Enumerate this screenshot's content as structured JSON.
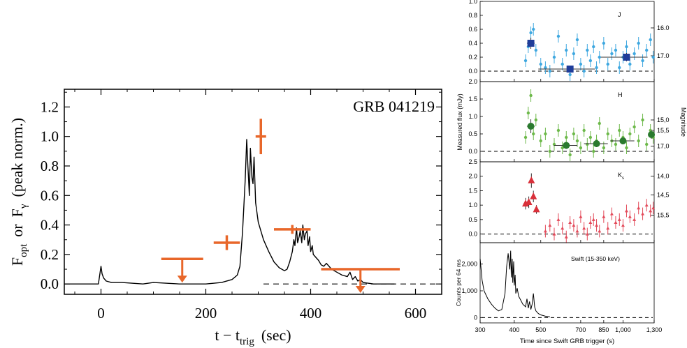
{
  "chart_data": [
    {
      "type": "line",
      "annotation": "GRB 041219",
      "xlabel": {
        "main": "t − t",
        "sub": "trig",
        "unit": "(sec)"
      },
      "ylabel": {
        "f1": "F",
        "s1": "opt",
        "or": "or",
        "f2": "F",
        "s2": "γ",
        "unit": "(peak norm.)"
      },
      "xlim": [
        -70,
        650
      ],
      "ylim": [
        -0.07,
        1.32
      ],
      "xticks": [
        0,
        200,
        400,
        600
      ],
      "yticks": [
        0.0,
        0.2,
        0.4,
        0.6,
        0.8,
        1.0,
        1.2
      ],
      "xtick_labels": [
        "0",
        "200",
        "400",
        "600"
      ],
      "ytick_labels": [
        "0.0",
        "0.2",
        "0.4",
        "0.6",
        "0.8",
        "1.0",
        "1.2"
      ],
      "colors": {
        "gamma": "#000000",
        "optical": "#e8672a"
      },
      "series": [
        {
          "x": [
            -70,
            -5,
            0,
            2,
            5,
            10,
            20,
            40,
            80,
            100,
            150,
            200,
            230,
            250,
            260,
            265,
            270,
            275,
            278,
            280,
            283,
            285,
            288,
            290,
            292,
            295,
            300,
            310,
            320,
            330,
            340,
            350,
            355,
            360,
            365,
            368,
            370,
            373,
            375,
            378,
            380,
            383,
            385,
            388,
            390,
            393,
            395,
            398,
            400,
            403,
            405,
            410,
            415,
            420,
            425,
            430,
            440,
            450,
            460,
            470,
            475,
            480,
            485,
            490,
            495,
            500,
            520,
            540,
            560
          ],
          "y": [
            0.0,
            0.0,
            0.12,
            0.07,
            0.04,
            0.02,
            0.01,
            0.01,
            0.0,
            0.01,
            0.0,
            0.0,
            0.01,
            0.03,
            0.06,
            0.12,
            0.35,
            0.7,
            0.98,
            0.82,
            0.6,
            0.92,
            0.72,
            0.68,
            0.86,
            0.55,
            0.42,
            0.3,
            0.22,
            0.15,
            0.11,
            0.09,
            0.1,
            0.15,
            0.22,
            0.3,
            0.26,
            0.38,
            0.28,
            0.32,
            0.36,
            0.28,
            0.4,
            0.3,
            0.34,
            0.36,
            0.26,
            0.32,
            0.22,
            0.26,
            0.2,
            0.18,
            0.16,
            0.13,
            0.12,
            0.14,
            0.1,
            0.08,
            0.06,
            0.05,
            0.08,
            0.03,
            0.05,
            0.02,
            0.03,
            0.01,
            0.0,
            0.0,
            0.0
          ]
        },
        {
          "x": [
            365,
            240,
            305
          ],
          "y": [
            0.37,
            0.28,
            1.0
          ],
          "xerr": [
            35,
            25,
            10
          ],
          "yerr": [
            0.03,
            0.05,
            0.12
          ]
        },
        {
          "x": [
            155,
            495
          ],
          "y": [
            0.17,
            0.1
          ],
          "xerr": [
            40,
            75
          ],
          "upper_limit": true
        }
      ]
    },
    {
      "type": "scatter",
      "xlabel": "Time since Swift GRB trigger (s)",
      "ylabel_left": "Measured flux (mJy)",
      "ylabel_right": "Magnitude",
      "xscale": "log",
      "xlim": [
        300,
        1300
      ],
      "xticks": [
        300,
        400,
        500,
        700,
        850,
        1000,
        1300
      ],
      "xtick_labels": [
        "300",
        "400",
        "500",
        "700",
        "850",
        "1,000",
        "1,300"
      ],
      "panels": [
        {
          "band": "J",
          "color": "#3fa8e0",
          "mean_color": "#1f3d9a",
          "ylim": [
            -0.15,
            1.0
          ],
          "yticks": [
            0.0,
            0.2,
            0.4,
            0.6,
            0.8,
            1.0
          ],
          "ytick_labels": [
            "0.0",
            "0.2",
            "0.4",
            "0.6",
            "0.8",
            "1.0"
          ],
          "mag_ticks": [
            16.0,
            17.0
          ],
          "mag_labels": [
            "16.0",
            "17.0"
          ],
          "mag_flux": [
            0.62,
            0.22
          ],
          "points_x": [
            440,
            450,
            460,
            470,
            480,
            500,
            520,
            540,
            560,
            580,
            600,
            620,
            640,
            660,
            680,
            700,
            720,
            740,
            760,
            780,
            800,
            820,
            850,
            880,
            910,
            940,
            970,
            1000,
            1030,
            1060,
            1100,
            1140,
            1180,
            1220,
            1260,
            1290
          ],
          "points_y": [
            0.15,
            0.35,
            0.55,
            0.6,
            0.3,
            0.1,
            0.05,
            0.0,
            0.2,
            0.5,
            0.1,
            0.3,
            -0.05,
            0.25,
            0.45,
            0.1,
            0.0,
            0.3,
            0.15,
            0.35,
            0.05,
            0.2,
            0.4,
            0.1,
            0.25,
            0.3,
            0.05,
            0.2,
            0.35,
            0.1,
            0.25,
            0.4,
            0.15,
            0.3,
            0.45,
            0.2
          ],
          "means": [
            {
              "x": 460,
              "y": 0.4,
              "xerr": 15,
              "yerr": 0.08
            },
            {
              "x": 640,
              "y": 0.03,
              "xerr": 150,
              "yerr": 0.05
            },
            {
              "x": 1030,
              "y": 0.2,
              "xerr": 200,
              "yerr": 0.06
            }
          ],
          "marker": "square"
        },
        {
          "band": "H",
          "color": "#6db94a",
          "mean_color": "#2a7a2e",
          "ylim": [
            -0.3,
            2.0
          ],
          "yticks": [
            0.0,
            0.5,
            1.0,
            1.5,
            2.0
          ],
          "ytick_labels": [
            "0.0",
            "0.5",
            "1.0",
            "1.5",
            "2.0"
          ],
          "mag_ticks": [
            15.0,
            15.5,
            17.0
          ],
          "mag_labels": [
            "15,0",
            "15,5",
            "17,0"
          ],
          "mag_flux": [
            0.9,
            0.6,
            0.15
          ],
          "points_x": [
            440,
            450,
            460,
            470,
            480,
            500,
            520,
            540,
            560,
            580,
            600,
            620,
            640,
            660,
            680,
            700,
            720,
            740,
            760,
            780,
            800,
            820,
            850,
            880,
            910,
            940,
            970,
            1000,
            1030,
            1060,
            1100,
            1140,
            1180,
            1220,
            1260,
            1290
          ],
          "points_y": [
            0.4,
            1.1,
            1.6,
            0.5,
            0.9,
            0.3,
            0.5,
            0.0,
            0.2,
            0.6,
            0.1,
            0.4,
            -0.1,
            0.5,
            0.3,
            0.1,
            0.6,
            0.2,
            0.4,
            0.0,
            0.3,
            0.8,
            0.1,
            0.5,
            0.3,
            0.2,
            0.6,
            0.4,
            0.1,
            0.5,
            0.7,
            0.3,
            0.9,
            0.2,
            0.6,
            0.4
          ],
          "means": [
            {
              "x": 460,
              "y": 0.72,
              "xerr": 15,
              "yerr": 0.2
            },
            {
              "x": 620,
              "y": 0.17,
              "xerr": 60,
              "yerr": 0.1
            },
            {
              "x": 800,
              "y": 0.22,
              "xerr": 80,
              "yerr": 0.1
            },
            {
              "x": 1000,
              "y": 0.3,
              "xerr": 100,
              "yerr": 0.1
            },
            {
              "x": 1270,
              "y": 0.48,
              "xerr": 30,
              "yerr": 0.12
            }
          ],
          "marker": "circle"
        },
        {
          "band": "Ks",
          "color": "#e34a5a",
          "mean_color": "#d9303a",
          "ylim": [
            -0.3,
            2.5
          ],
          "yticks": [
            0.0,
            0.5,
            1.0,
            1.5,
            2.0,
            2.5
          ],
          "ytick_labels": [
            "0.0",
            "0.5",
            "1.0",
            "1.5",
            "2.0",
            "2.5"
          ],
          "mag_ticks": [
            14.0,
            14.5,
            15.5
          ],
          "mag_labels": [
            "14,0",
            "14,5",
            "15,5"
          ],
          "mag_flux": [
            2.0,
            1.35,
            0.65
          ],
          "points_x": [
            520,
            540,
            560,
            580,
            600,
            620,
            640,
            660,
            680,
            700,
            720,
            740,
            760,
            780,
            800,
            820,
            850,
            880,
            910,
            940,
            970,
            1000,
            1030,
            1060,
            1100,
            1140,
            1180,
            1220,
            1260,
            1290
          ],
          "points_y": [
            0.1,
            0.3,
            0.0,
            0.5,
            0.2,
            -0.1,
            0.4,
            0.3,
            0.1,
            0.6,
            0.2,
            0.0,
            0.4,
            0.5,
            0.3,
            0.1,
            0.6,
            0.2,
            0.7,
            0.4,
            0.5,
            0.3,
            0.8,
            0.6,
            0.5,
            0.9,
            0.7,
            1.0,
            0.8,
            0.9
          ],
          "means": [
            {
              "x": 440,
              "y": 1.05,
              "xerr": 8,
              "yerr": 0.2
            },
            {
              "x": 452,
              "y": 1.1,
              "xerr": 8,
              "yerr": 0.2
            },
            {
              "x": 462,
              "y": 1.85,
              "xerr": 6,
              "yerr": 0.25
            },
            {
              "x": 470,
              "y": 1.3,
              "xerr": 6,
              "yerr": 0.2
            },
            {
              "x": 482,
              "y": 0.85,
              "xerr": 8,
              "yerr": 0.15
            }
          ],
          "marker": "triangle"
        },
        {
          "band": "Swift (15-350 keV)",
          "color": "#000000",
          "ylabel": "Counts per 64 ms",
          "ylim": [
            -200,
            2800
          ],
          "yticks": [
            0,
            1000,
            2000
          ],
          "ytick_labels": [
            "0",
            "1,000",
            "2,000"
          ],
          "curve_x": [
            300,
            305,
            310,
            320,
            330,
            340,
            350,
            360,
            370,
            375,
            380,
            385,
            388,
            390,
            393,
            395,
            398,
            400,
            403,
            405,
            410,
            415,
            420,
            430,
            440,
            445,
            450,
            455,
            460,
            465,
            470,
            475,
            480,
            490,
            500,
            520,
            540
          ],
          "curve_y": [
            2200,
            1400,
            1000,
            700,
            500,
            350,
            250,
            300,
            900,
            1900,
            2400,
            1800,
            2500,
            1500,
            2200,
            1300,
            2100,
            1200,
            1600,
            900,
            1100,
            800,
            700,
            500,
            400,
            700,
            350,
            600,
            300,
            500,
            900,
            400,
            250,
            150,
            100,
            50,
            30
          ]
        }
      ]
    }
  ]
}
